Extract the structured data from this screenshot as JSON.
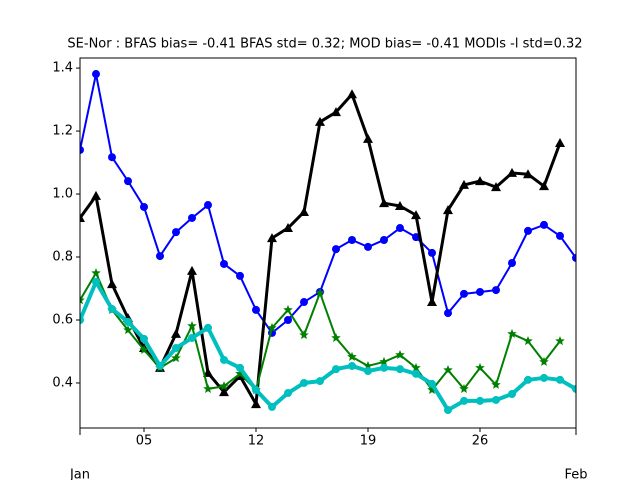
{
  "chart_data": {
    "type": "line",
    "title": "SE-Nor   : BFAS bias= -0.41 BFAS std= 0.32; MOD bias= -0.41 MODls -l std=0.32",
    "x": [
      1,
      2,
      3,
      4,
      5,
      6,
      7,
      8,
      9,
      10,
      11,
      12,
      13,
      14,
      15,
      16,
      17,
      18,
      19,
      20,
      21,
      22,
      23,
      24,
      25,
      26,
      27,
      28,
      29,
      30,
      31,
      32
    ],
    "xlim": [
      1,
      32
    ],
    "xticks": [
      {
        "value": 5,
        "label": "05"
      },
      {
        "value": 12,
        "label": "12"
      },
      {
        "value": 19,
        "label": "19"
      },
      {
        "value": 26,
        "label": "26"
      }
    ],
    "month_ticks": [
      {
        "value": 1,
        "label": "Jan"
      },
      {
        "value": 32,
        "label": "Feb"
      }
    ],
    "ylim": [
      0.257,
      1.432
    ],
    "yticks": [
      {
        "value": 0.4,
        "label": "0.4"
      },
      {
        "value": 0.6,
        "label": "0.6"
      },
      {
        "value": 0.8,
        "label": "0.8"
      },
      {
        "value": 1,
        "label": "1.0"
      },
      {
        "value": 1.2,
        "label": "1.2"
      },
      {
        "value": 1.4,
        "label": "1.4"
      }
    ],
    "grid": false,
    "series": [
      {
        "color": "#0000ff",
        "marker": "circle",
        "linewidth": 2,
        "values": [
          1.14,
          1.381,
          1.117,
          1.041,
          0.959,
          0.803,
          0.879,
          0.924,
          0.965,
          0.778,
          0.74,
          0.632,
          0.559,
          0.6,
          0.657,
          0.689,
          0.825,
          0.854,
          0.832,
          0.854,
          0.892,
          0.863,
          0.813,
          0.622,
          0.683,
          0.689,
          0.695,
          0.781,
          0.883,
          0.902,
          0.867,
          0.797
        ]
      },
      {
        "color": "#000000",
        "marker": "triangle",
        "linewidth": 3,
        "values": [
          0.924,
          0.994,
          0.714,
          0.606,
          0.511,
          0.448,
          0.556,
          0.756,
          0.432,
          0.371,
          0.422,
          0.333,
          0.86,
          0.892,
          0.943,
          1.229,
          1.26,
          1.317,
          1.175,
          0.971,
          0.962,
          0.933,
          0.657,
          0.949,
          1.029,
          1.041,
          1.022,
          1.067,
          1.063,
          1.025,
          1.162,
          null
        ]
      },
      {
        "color": "#008000",
        "marker": "star",
        "linewidth": 2,
        "values": [
          0.663,
          0.749,
          0.632,
          0.568,
          0.505,
          0.448,
          0.479,
          0.581,
          0.381,
          0.39,
          0.429,
          0.378,
          0.575,
          0.632,
          0.552,
          0.686,
          0.543,
          0.483,
          0.454,
          0.467,
          0.489,
          0.448,
          0.378,
          0.441,
          0.381,
          0.448,
          0.394,
          0.556,
          0.533,
          0.467,
          0.533,
          null
        ]
      },
      {
        "color": "#00bfbf",
        "marker": "circle",
        "linewidth": 4,
        "values": [
          0.6,
          0.721,
          0.635,
          0.594,
          0.54,
          0.454,
          0.511,
          0.543,
          0.575,
          0.473,
          0.448,
          0.378,
          0.324,
          0.368,
          0.4,
          0.406,
          0.444,
          0.454,
          0.438,
          0.448,
          0.444,
          0.429,
          0.397,
          0.314,
          0.343,
          0.343,
          0.346,
          0.365,
          0.41,
          0.416,
          0.41,
          0.381
        ]
      }
    ]
  }
}
